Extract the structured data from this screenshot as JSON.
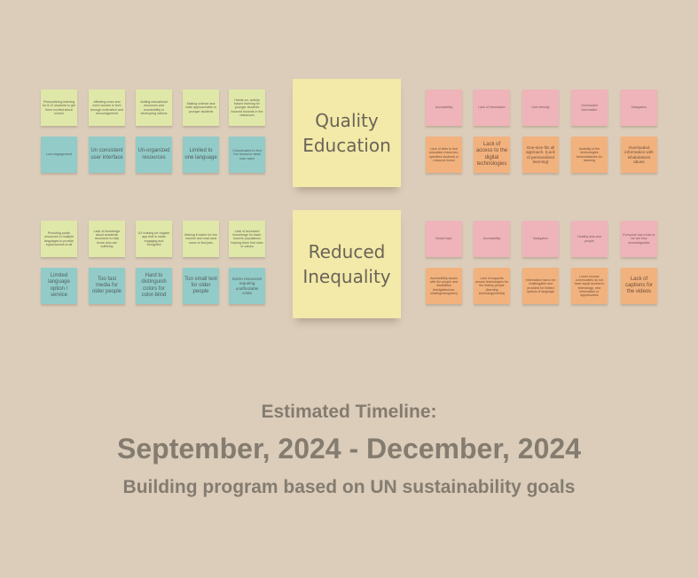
{
  "board": {
    "quality_education": {
      "title": "Quality Education",
      "ideas_top": [
        "Personalizing learning for 8-12 students to get them excited about school",
        "Affecting more and more women in tech through motivation and encouragement",
        "Adding educational resources and accessibility to developing nations",
        "Making science and math approachable to younger students",
        "Hands-on, activity based learning for younger students focused towards in the classroom"
      ],
      "problems_bottom": [
        "Low engagement",
        "Un consistent user interface",
        "Un-organized resources",
        "Limited to one language",
        "Complicated to find the resource what user want"
      ],
      "pain_points_top": [
        "Accessibility",
        "Lack of information",
        "User friendly",
        "Overloaded information",
        "Navigation"
      ],
      "pain_points_bottom": [
        "Lack of sites to find education resources, specified students or resource brand",
        "Lack of access to the digital technologies",
        "One-size-fits all approach. (Lack of personalized learning)",
        "Usability of the technologies feels/obstacles for learning",
        "Overloaded information with inhabitations abuse"
      ]
    },
    "reduced_inequality": {
      "title": "Reduced Inequality",
      "ideas_top": [
        "Providing public resources in multiple languages to provide equal access to all",
        "Lack of knowledge about academic resources to help those who are suffering",
        "UX training for register app that is made engaging and thoughtful",
        "Making it easier for low income and rural area users to find jobs",
        "Lack of accessed knowledge for lower income populations helping them find rules or values"
      ],
      "problems_bottom": [
        "Limited language option / service",
        "Too fast media for older people",
        "Hard to distinguish colors for color-blind",
        "Too small text for older people",
        "Some resources requiring unaffordable costs"
      ],
      "pain_points_top": [
        "Broad topic",
        "Accessibility",
        "Navigation",
        "Healthy aids and people",
        "Everyone has a bad or we are less knowledgeable"
      ],
      "pain_points_bottom": [
        "Accessibility issues with the people and disabilities (navigation/use, reading/navigation)",
        "Lack of supports across technologies for the elderly people (learning technology/media)",
        "Information has to be challengable and provided for limited options of language",
        "Lower income communities do not have equal access to technology, new information or opportunities",
        "Lack of captions for the videos"
      ]
    }
  },
  "timeline": {
    "label": "Estimated Timeline:",
    "dates": "September, 2024 - December, 2024",
    "subtitle": "Building program based on UN sustainability goals"
  },
  "colors": {
    "background": "#dbcdba",
    "idea_note": "#dfe8a8",
    "problem_note": "#93cbc8",
    "pain_point_note": "#eeb4b9",
    "pain_detail_note": "#f2b27e",
    "topic_note": "#f3e9a8",
    "text": "#857c70"
  }
}
